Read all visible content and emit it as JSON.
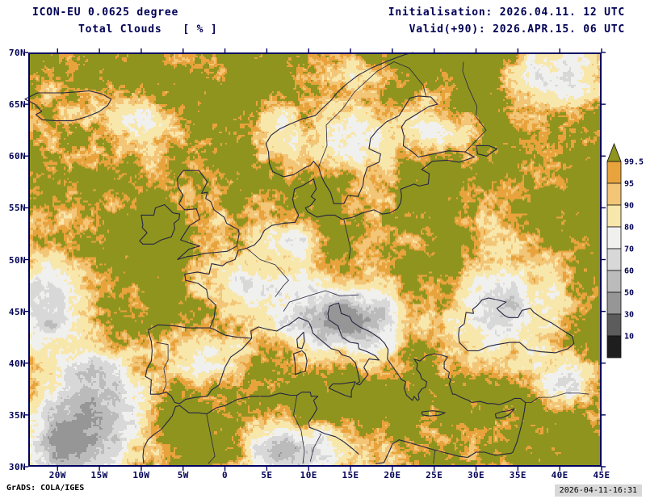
{
  "header": {
    "model": "ICON-EU 0.0625 degree",
    "field": "Total Clouds   [ % ]",
    "init": "Initialisation: 2026.04.11. 12 UTC",
    "valid": "Valid(+90): 2026.APR.15. 06 UTC"
  },
  "footer": {
    "credit": "GrADS: COLA/IGES",
    "generated": "2026-04-11-16:31"
  },
  "axes": {
    "lat_ticks": [
      "70N",
      "65N",
      "60N",
      "55N",
      "50N",
      "45N",
      "40N",
      "35N",
      "30N"
    ],
    "lon_ticks": [
      "20W",
      "15W",
      "10W",
      "5W",
      "0",
      "5E",
      "10E",
      "15E",
      "20E",
      "25E",
      "30E",
      "35E",
      "40E",
      "45E"
    ]
  },
  "legend": {
    "tick_labels": [
      "99.5",
      "95",
      "90",
      "80",
      "70",
      "60",
      "50",
      "30",
      "10"
    ],
    "segment_colors": [
      "#8f941f",
      "#e8a33c",
      "#f2c577",
      "#f8e7ab",
      "#f0f0ee",
      "#d8d8d8",
      "#bbbbbb",
      "#969696",
      "#5c5c5c",
      "#1e1e1e"
    ]
  },
  "chart_data": {
    "type": "heatmap",
    "title": "Total Clouds [ % ]",
    "units": "%",
    "model": "ICON-EU 0.0625 degree",
    "initialisation": "2026.04.11. 12 UTC",
    "valid_time": "2026.APR.15. 06 UTC",
    "forecast_offset": "+90",
    "color_levels": [
      10,
      30,
      50,
      60,
      70,
      80,
      90,
      95,
      99.5
    ],
    "level_colors_low_to_high": [
      "#1e1e1e",
      "#5c5c5c",
      "#969696",
      "#bbbbbb",
      "#d8d8d8",
      "#f0f0ee",
      "#f8e7ab",
      "#f2c577",
      "#e8a33c",
      "#8f941f"
    ],
    "x_axis": {
      "label_ticks": [
        "20W",
        "15W",
        "10W",
        "5W",
        "0",
        "5E",
        "10E",
        "15E",
        "20E",
        "25E",
        "30E",
        "35E",
        "40E",
        "45E"
      ]
    },
    "y_axis": {
      "label_ticks": [
        "30N",
        "35N",
        "40N",
        "45N",
        "50N",
        "55N",
        "60N",
        "65N",
        "70N"
      ]
    },
    "legend_position": "right"
  }
}
